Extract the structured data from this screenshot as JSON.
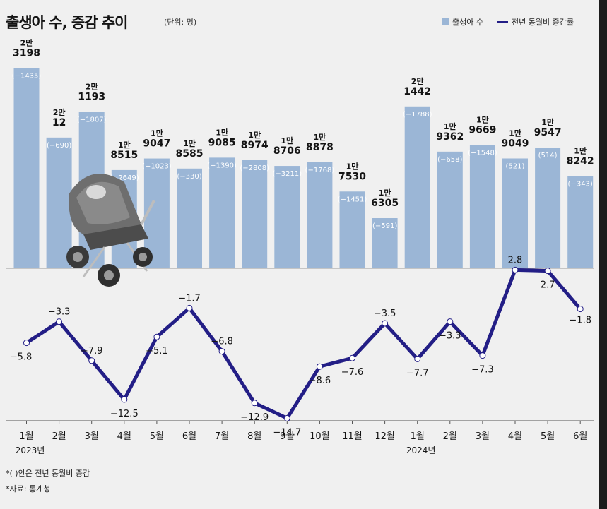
{
  "title": "출생아 수, 증감 추이",
  "unit": "(단위: 명)",
  "legend": {
    "births": "출생아 수",
    "rate": "전년 동월비 증감률"
  },
  "colors": {
    "bar": "#9bb6d6",
    "line": "#231e86",
    "text": "#141414",
    "label_box_text": "#ffffff"
  },
  "footnotes": [
    "*( )안은 전년 동월비 증감",
    "*자료: 통계청"
  ],
  "chart_data": {
    "type": "bar+line",
    "categories": [
      "1월",
      "2월",
      "3월",
      "4월",
      "5월",
      "6월",
      "7월",
      "8월",
      "9월",
      "10월",
      "11월",
      "12월",
      "1월",
      "2월",
      "3월",
      "4월",
      "5월",
      "6월"
    ],
    "year_labels": [
      "2023년",
      "",
      "",
      "",
      "",
      "",
      "",
      "",
      "",
      "",
      "",
      "",
      "2024년",
      "",
      "",
      "",
      "",
      ""
    ],
    "series": [
      {
        "name": "출생아 수",
        "type": "bar",
        "values": [
          23198,
          20012,
          21193,
          18515,
          19047,
          18585,
          19085,
          18974,
          18706,
          18878,
          17530,
          16305,
          21442,
          19362,
          19669,
          19049,
          19547,
          18242
        ],
        "label_man": [
          "2만",
          "2만",
          "2만",
          "1만",
          "1만",
          "1만",
          "1만",
          "1만",
          "1만",
          "1만",
          "1만",
          "1만",
          "2만",
          "1만",
          "1만",
          "1만",
          "1만",
          "1만"
        ],
        "label_rest": [
          "3198",
          "12",
          "1193",
          "8515",
          "9047",
          "8585",
          "9085",
          "8974",
          "8706",
          "8878",
          "7530",
          "6305",
          "1442",
          "9362",
          "9669",
          "9049",
          "9547",
          "8242"
        ],
        "change_labels": [
          "-1435",
          "-690",
          "-1807",
          "-2649",
          "-1023",
          "-330",
          "-1390",
          "-2808",
          "-3211",
          "-1768",
          "-1451",
          "-591",
          "-1788",
          "-658",
          "-1548",
          "521",
          "514",
          "-343"
        ]
      },
      {
        "name": "전년 동월비 증감률",
        "type": "line",
        "values": [
          -5.8,
          -3.3,
          -7.9,
          -12.5,
          -5.1,
          -1.7,
          -6.8,
          -12.9,
          -14.7,
          -8.6,
          -7.6,
          -3.5,
          -7.7,
          -3.3,
          -7.3,
          2.8,
          2.7,
          -1.8
        ],
        "value_labels": [
          "-5.8",
          "-3.3",
          "-7.9",
          "-12.5",
          "-5.1",
          "-1.7",
          "-6.8",
          "-12.9",
          "-14.7",
          "-8.6",
          "-7.6",
          "-3.5",
          "-7.7",
          "-3.3",
          "-7.3",
          "2.8",
          "2.7",
          "-1.8"
        ]
      }
    ]
  }
}
